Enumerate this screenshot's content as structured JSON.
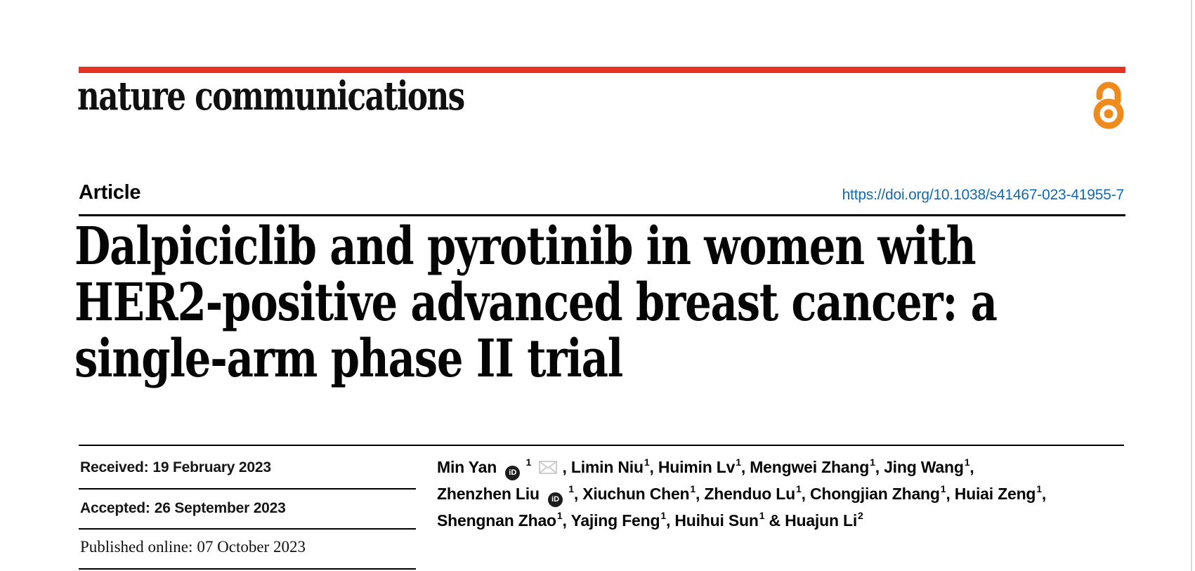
{
  "masthead": {
    "journal_name": "nature communications",
    "open_access_icon": "open-access-padlock"
  },
  "article_bar": {
    "label": "Article",
    "doi": "https://doi.org/10.1038/s41467-023-41955-7"
  },
  "title": {
    "lines": [
      "Dalpiciclib and pyrotinib in women with",
      "HER2-positive advanced breast cancer: a",
      "single-arm phase II trial"
    ]
  },
  "history": {
    "received": {
      "label": "Received:",
      "value": "19 February 2023"
    },
    "accepted": {
      "label": "Accepted:",
      "value": "26 September 2023"
    },
    "published": {
      "label": "Published online:",
      "value": "07 October 2023"
    }
  },
  "authors": {
    "lines": [
      [
        {
          "t": "text",
          "v": "Min Yan"
        },
        {
          "t": "icon",
          "v": "orcid"
        },
        {
          "t": "sup",
          "v": "1"
        },
        {
          "t": "icon",
          "v": "envelope"
        },
        {
          "t": "text",
          "v": ", Limin Niu"
        },
        {
          "t": "sup",
          "v": "1"
        },
        {
          "t": "text",
          "v": ", Huimin Lv"
        },
        {
          "t": "sup",
          "v": "1"
        },
        {
          "t": "text",
          "v": ", Mengwei Zhang"
        },
        {
          "t": "sup",
          "v": "1"
        },
        {
          "t": "text",
          "v": ", Jing Wang"
        },
        {
          "t": "sup",
          "v": "1"
        },
        {
          "t": "text",
          "v": ","
        }
      ],
      [
        {
          "t": "text",
          "v": "Zhenzhen Liu"
        },
        {
          "t": "icon",
          "v": "orcid"
        },
        {
          "t": "sup",
          "v": "1"
        },
        {
          "t": "text",
          "v": ", Xiuchun Chen"
        },
        {
          "t": "sup",
          "v": "1"
        },
        {
          "t": "text",
          "v": ", Zhenduo Lu"
        },
        {
          "t": "sup",
          "v": "1"
        },
        {
          "t": "text",
          "v": ", Chongjian Zhang"
        },
        {
          "t": "sup",
          "v": "1"
        },
        {
          "t": "text",
          "v": ", Huiai Zeng"
        },
        {
          "t": "sup",
          "v": "1"
        },
        {
          "t": "text",
          "v": ","
        }
      ],
      [
        {
          "t": "text",
          "v": "Shengnan Zhao"
        },
        {
          "t": "sup",
          "v": "1"
        },
        {
          "t": "text",
          "v": ", Yajing Feng"
        },
        {
          "t": "sup",
          "v": "1"
        },
        {
          "t": "text",
          "v": ", Huihui Sun"
        },
        {
          "t": "sup",
          "v": "1"
        },
        {
          "t": "text",
          "v": " & Huajun Li"
        },
        {
          "t": "sup",
          "v": "2"
        }
      ]
    ]
  },
  "icons": {
    "orcid_label": "iD",
    "orcid_icon_name": "orcid-icon",
    "envelope_icon_name": "email-envelope-icon"
  },
  "colors": {
    "brand_red": "#e53323",
    "oa_orange": "#ef8a1d",
    "link_blue": "#1069b2",
    "ink": "#0a0a0a",
    "rule_black": "#000000",
    "page_edge_gray": "#d6d6d6",
    "envelope_gray": "#c8c8c8",
    "orcid_bg": "#1c1c1c"
  }
}
